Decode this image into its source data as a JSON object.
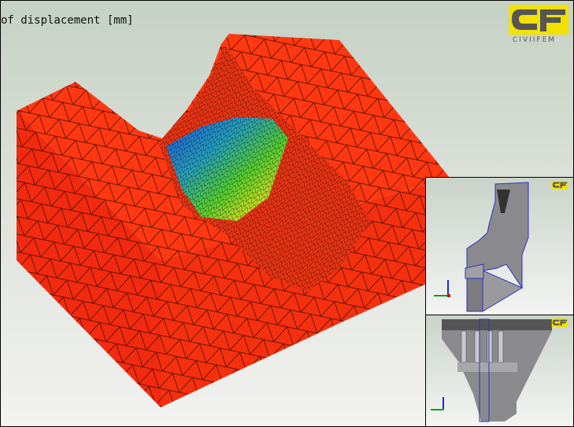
{
  "viewport": {
    "title": "of displacement [mm]",
    "logo_text": "CIVIIFEM",
    "colors": {
      "mesh_red": "#ff2a10",
      "mesh_lines": "#3a0a00",
      "accent_yellow": "#f2e000",
      "logo_gray": "#555555",
      "model_gray": "#8a8a8e",
      "edge_blue": "#3030c0"
    }
  },
  "insets": [
    {
      "name": "dam-side-view",
      "axis_icon": "xyz-axis-triad"
    },
    {
      "name": "dam-front-view",
      "axis_icon": "xyz-axis-triad"
    }
  ]
}
